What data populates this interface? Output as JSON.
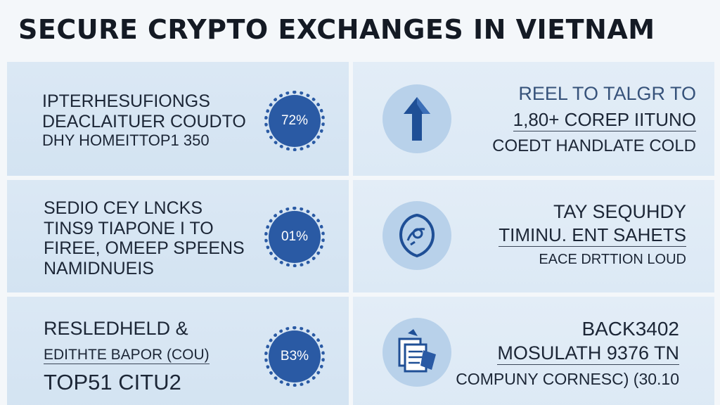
{
  "title": "SECURE CRYPTO EXCHANGES IN VIETNAM",
  "cards": [
    {
      "lines": [
        "IPTERHESUFIONGS",
        "DEACLAITUER COUDTO",
        "DHY HOMEITTOP1 350"
      ],
      "badge": "72%"
    },
    {
      "lines": [
        "REEL TO TALGR  TO",
        "1,80+ COREP IITUNO",
        "COEDT HANDLATE COLD"
      ],
      "icon": "arrow-up-icon"
    },
    {
      "lines": [
        "SEDIO CEY LNCKS",
        "TINS9 TIAPONE I TO",
        "FIREE, OMEEP SPEENS",
        "NAMIDNUEIS"
      ],
      "badge": "01%"
    },
    {
      "lines": [
        "TAY SEQUHDY",
        "TIMINU. ENT SAHETS",
        "EACE DRTTION LOUD"
      ],
      "icon": "shield-coin-icon"
    },
    {
      "lines": [
        "RESLEDHELD &",
        "EDITHTE BAPOR (COU)",
        "TOP51 CITU2"
      ],
      "badge": "B3%"
    },
    {
      "lines": [
        "BACK3402",
        "MOSULATH 9376 TN",
        "COMPUNY CORNESC) (30.10"
      ],
      "icon": "documents-icon"
    }
  ],
  "colors": {
    "accent": "#2a5aa4",
    "card": "#d8e6f3",
    "icon_bg": "#b8d1ea"
  }
}
